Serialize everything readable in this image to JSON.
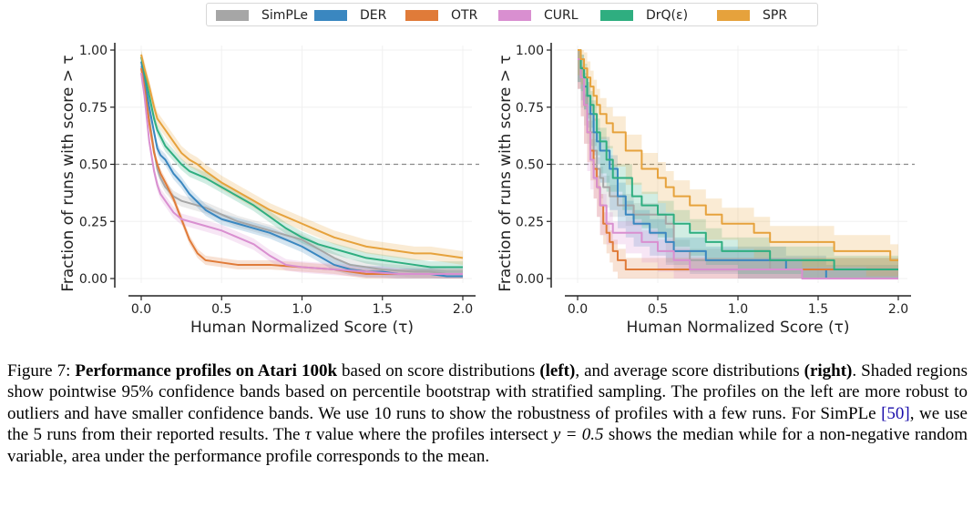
{
  "legend": [
    {
      "name": "SimPLe",
      "color": "#a6a6a6"
    },
    {
      "name": "DER",
      "color": "#3a87c0"
    },
    {
      "name": "OTR",
      "color": "#e07b39"
    },
    {
      "name": "CURL",
      "color": "#d98fd0"
    },
    {
      "name": "DrQ(ε)",
      "color": "#2fae80"
    },
    {
      "name": "SPR",
      "color": "#e6a23c"
    }
  ],
  "caption": {
    "fig_label": "Figure 7: ",
    "bold_title": "Performance profiles on Atari 100k",
    "t1": " based on score distributions ",
    "left_label": "(left)",
    "t2": ", and average score distributions ",
    "right_label": "(right)",
    "t3": ". Shaded regions show pointwise 95% confidence bands based on percentile bootstrap with stratified sampling. The profiles on the left are more robust to outliers and have smaller confidence bands. We use 10 runs to show the robustness of profiles with a few runs. For SimPLe ",
    "ref": "[50]",
    "t4": ", we use the 5 runs from their reported results. The ",
    "tau": "τ",
    "t5": " value where the profiles intersect ",
    "eq": "y = 0.5",
    "t6": " shows the median while for a non-negative random variable, area under the performance profile corresponds to the mean."
  },
  "chart_data": [
    {
      "type": "line",
      "panel": "left",
      "xlabel": "Human Normalized Score (τ)",
      "ylabel": "Fraction of runs with score > τ",
      "xlim": [
        0,
        2
      ],
      "ylim": [
        0,
        1
      ],
      "xticks": [
        "0.0",
        "0.5",
        "1.0",
        "1.5",
        "2.0"
      ],
      "yticks": [
        "0.00",
        "0.25",
        "0.50",
        "0.75",
        "1.00"
      ],
      "reference_line": {
        "y": 0.5,
        "style": "dashed"
      },
      "confidence_bands": true,
      "series": [
        {
          "name": "SimPLe",
          "color": "#a6a6a6",
          "band": 0.025,
          "x": [
            0,
            0.02,
            0.05,
            0.08,
            0.1,
            0.12,
            0.15,
            0.2,
            0.25,
            0.3,
            0.4,
            0.5,
            0.6,
            0.7,
            0.8,
            0.9,
            1.0,
            1.1,
            1.2,
            1.3,
            1.4,
            1.5,
            1.6,
            1.7,
            1.8,
            1.9,
            2.0
          ],
          "y": [
            0.93,
            0.86,
            0.7,
            0.56,
            0.48,
            0.44,
            0.4,
            0.36,
            0.34,
            0.33,
            0.31,
            0.28,
            0.25,
            0.23,
            0.21,
            0.19,
            0.17,
            0.13,
            0.09,
            0.06,
            0.05,
            0.04,
            0.035,
            0.03,
            0.03,
            0.02,
            0.02
          ]
        },
        {
          "name": "DER",
          "color": "#3a87c0",
          "band": 0.025,
          "x": [
            0,
            0.02,
            0.05,
            0.08,
            0.1,
            0.12,
            0.15,
            0.2,
            0.25,
            0.3,
            0.4,
            0.5,
            0.6,
            0.7,
            0.8,
            0.9,
            1.0,
            1.1,
            1.2,
            1.3,
            1.4,
            1.5,
            1.6,
            1.7,
            1.8,
            1.9,
            2.0
          ],
          "y": [
            0.95,
            0.87,
            0.75,
            0.64,
            0.57,
            0.54,
            0.52,
            0.46,
            0.42,
            0.37,
            0.3,
            0.26,
            0.24,
            0.22,
            0.2,
            0.17,
            0.14,
            0.1,
            0.06,
            0.04,
            0.03,
            0.03,
            0.02,
            0.02,
            0.02,
            0.01,
            0.01
          ]
        },
        {
          "name": "OTR",
          "color": "#e07b39",
          "band": 0.02,
          "x": [
            0,
            0.02,
            0.05,
            0.08,
            0.1,
            0.12,
            0.15,
            0.2,
            0.25,
            0.3,
            0.35,
            0.4,
            0.5,
            0.6,
            0.7,
            0.8,
            1.0,
            1.2,
            1.4,
            1.6,
            1.8,
            2.0
          ],
          "y": [
            0.92,
            0.84,
            0.68,
            0.55,
            0.5,
            0.46,
            0.42,
            0.35,
            0.26,
            0.17,
            0.11,
            0.08,
            0.07,
            0.06,
            0.06,
            0.06,
            0.05,
            0.04,
            0.02,
            0.02,
            0.02,
            0.02
          ]
        },
        {
          "name": "CURL",
          "color": "#d98fd0",
          "band": 0.025,
          "x": [
            0,
            0.02,
            0.05,
            0.08,
            0.1,
            0.12,
            0.15,
            0.2,
            0.25,
            0.3,
            0.4,
            0.5,
            0.6,
            0.7,
            0.8,
            0.9,
            1.0,
            1.2,
            1.4,
            1.6,
            1.8,
            2.0
          ],
          "y": [
            0.9,
            0.8,
            0.6,
            0.47,
            0.41,
            0.37,
            0.34,
            0.29,
            0.26,
            0.25,
            0.23,
            0.21,
            0.18,
            0.15,
            0.1,
            0.06,
            0.05,
            0.04,
            0.03,
            0.02,
            0.02,
            0.02
          ]
        },
        {
          "name": "DrQ(ε)",
          "color": "#2fae80",
          "band": 0.025,
          "x": [
            0,
            0.02,
            0.05,
            0.08,
            0.1,
            0.15,
            0.2,
            0.25,
            0.3,
            0.4,
            0.5,
            0.6,
            0.7,
            0.8,
            0.9,
            1.0,
            1.1,
            1.2,
            1.3,
            1.4,
            1.5,
            1.6,
            1.7,
            1.8,
            1.9,
            2.0
          ],
          "y": [
            0.97,
            0.9,
            0.8,
            0.7,
            0.65,
            0.58,
            0.54,
            0.5,
            0.47,
            0.44,
            0.4,
            0.36,
            0.32,
            0.27,
            0.22,
            0.18,
            0.15,
            0.13,
            0.11,
            0.09,
            0.08,
            0.07,
            0.06,
            0.05,
            0.05,
            0.05
          ]
        },
        {
          "name": "SPR",
          "color": "#e6a23c",
          "band": 0.03,
          "x": [
            0,
            0.02,
            0.05,
            0.08,
            0.1,
            0.15,
            0.2,
            0.25,
            0.3,
            0.35,
            0.4,
            0.5,
            0.6,
            0.7,
            0.8,
            0.9,
            1.0,
            1.1,
            1.2,
            1.3,
            1.4,
            1.5,
            1.6,
            1.7,
            1.8,
            1.9,
            2.0
          ],
          "y": [
            0.98,
            0.92,
            0.84,
            0.75,
            0.7,
            0.65,
            0.6,
            0.55,
            0.52,
            0.5,
            0.47,
            0.42,
            0.38,
            0.34,
            0.3,
            0.27,
            0.24,
            0.21,
            0.18,
            0.16,
            0.14,
            0.13,
            0.12,
            0.11,
            0.11,
            0.1,
            0.09
          ]
        }
      ]
    },
    {
      "type": "line",
      "panel": "right",
      "xlabel": "Human Normalized Score (τ)",
      "ylabel": "Fraction of runs with score > τ",
      "xlim": [
        0,
        2
      ],
      "ylim": [
        0,
        1
      ],
      "xticks": [
        "0.0",
        "0.5",
        "1.0",
        "1.5",
        "2.0"
      ],
      "yticks": [
        "0.00",
        "0.25",
        "0.50",
        "0.75",
        "1.00"
      ],
      "reference_line": {
        "y": 0.5,
        "style": "dashed"
      },
      "confidence_bands": true,
      "step": true,
      "series": [
        {
          "name": "SimPLe",
          "color": "#a6a6a6",
          "band": 0.05,
          "x": [
            0,
            0.02,
            0.04,
            0.06,
            0.08,
            0.1,
            0.12,
            0.14,
            0.16,
            0.2,
            0.25,
            0.3,
            0.35,
            0.45,
            0.55,
            0.6,
            0.7,
            0.8,
            1.0,
            1.2,
            1.4,
            1.6,
            1.8,
            2.0
          ],
          "y": [
            0.96,
            0.88,
            0.8,
            0.72,
            0.64,
            0.56,
            0.48,
            0.44,
            0.4,
            0.36,
            0.32,
            0.32,
            0.28,
            0.28,
            0.24,
            0.12,
            0.08,
            0.08,
            0.08,
            0.04,
            0.04,
            0.04,
            0.04,
            0.04
          ]
        },
        {
          "name": "DER",
          "color": "#3a87c0",
          "band": 0.06,
          "x": [
            0,
            0.02,
            0.04,
            0.06,
            0.08,
            0.1,
            0.12,
            0.14,
            0.2,
            0.25,
            0.3,
            0.35,
            0.45,
            0.55,
            0.6,
            0.7,
            0.8,
            1.0,
            1.3,
            1.5,
            1.55,
            1.6,
            1.8,
            2.0
          ],
          "y": [
            0.96,
            0.92,
            0.84,
            0.8,
            0.72,
            0.64,
            0.6,
            0.56,
            0.48,
            0.36,
            0.28,
            0.24,
            0.2,
            0.16,
            0.12,
            0.12,
            0.08,
            0.08,
            0.04,
            0.04,
            0.0,
            0.0,
            0.0,
            0.0
          ]
        },
        {
          "name": "OTR",
          "color": "#e07b39",
          "band": 0.05,
          "x": [
            0,
            0.02,
            0.04,
            0.06,
            0.08,
            0.1,
            0.12,
            0.14,
            0.16,
            0.18,
            0.2,
            0.22,
            0.25,
            0.3,
            0.35,
            0.4,
            0.5,
            0.6,
            1.0,
            1.5,
            2.0
          ],
          "y": [
            0.96,
            0.88,
            0.76,
            0.64,
            0.56,
            0.48,
            0.4,
            0.32,
            0.24,
            0.2,
            0.16,
            0.12,
            0.08,
            0.04,
            0.04,
            0.04,
            0.04,
            0.04,
            0.04,
            0.04,
            0.04
          ]
        },
        {
          "name": "CURL",
          "color": "#d98fd0",
          "band": 0.05,
          "x": [
            0,
            0.02,
            0.04,
            0.06,
            0.08,
            0.1,
            0.12,
            0.14,
            0.18,
            0.22,
            0.3,
            0.4,
            0.5,
            0.6,
            0.7,
            0.8,
            1.0,
            1.2,
            1.4,
            1.6,
            1.8,
            2.0
          ],
          "y": [
            0.96,
            0.88,
            0.76,
            0.64,
            0.52,
            0.44,
            0.4,
            0.32,
            0.24,
            0.2,
            0.2,
            0.16,
            0.12,
            0.08,
            0.04,
            0.04,
            0.04,
            0.04,
            0.0,
            0.0,
            0.0,
            0.0
          ]
        },
        {
          "name": "DrQ(ε)",
          "color": "#2fae80",
          "band": 0.06,
          "x": [
            0,
            0.02,
            0.04,
            0.06,
            0.08,
            0.1,
            0.12,
            0.14,
            0.18,
            0.22,
            0.28,
            0.34,
            0.4,
            0.5,
            0.6,
            0.7,
            0.8,
            0.9,
            1.0,
            1.2,
            1.4,
            1.6,
            1.8,
            2.0
          ],
          "y": [
            1.0,
            0.92,
            0.88,
            0.8,
            0.76,
            0.72,
            0.64,
            0.6,
            0.52,
            0.44,
            0.44,
            0.36,
            0.32,
            0.28,
            0.24,
            0.2,
            0.16,
            0.12,
            0.12,
            0.08,
            0.08,
            0.04,
            0.04,
            0.04
          ]
        },
        {
          "name": "SPR",
          "color": "#e6a23c",
          "band": 0.07,
          "x": [
            0,
            0.02,
            0.04,
            0.06,
            0.08,
            0.1,
            0.12,
            0.14,
            0.18,
            0.22,
            0.3,
            0.4,
            0.5,
            0.55,
            0.6,
            0.7,
            0.8,
            0.9,
            1.0,
            1.1,
            1.2,
            1.4,
            1.6,
            1.8,
            1.95,
            2.0
          ],
          "y": [
            1.0,
            0.96,
            0.92,
            0.88,
            0.84,
            0.8,
            0.76,
            0.72,
            0.68,
            0.64,
            0.56,
            0.48,
            0.44,
            0.4,
            0.36,
            0.32,
            0.28,
            0.24,
            0.24,
            0.2,
            0.16,
            0.16,
            0.12,
            0.12,
            0.08,
            0.08
          ]
        }
      ]
    }
  ]
}
